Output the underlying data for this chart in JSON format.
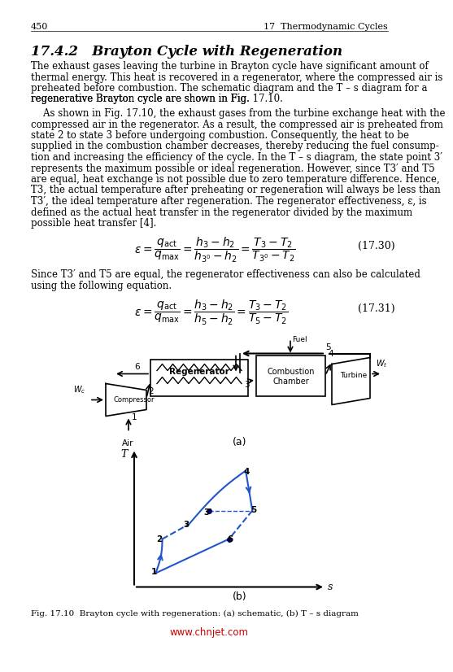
{
  "page_number": "450",
  "chapter_header": "17  Thermodynamic Cycles",
  "section_title": "17.4.2   Brayton Cycle with Regeneration",
  "para1": "The exhaust gases leaving the turbine in Brayton cycle have significant amount of thermal energy. This heat is recovered in a regenerator, where the compressed air is preheated before combustion. The schematic diagram and the T – s diagram for a regenerative Brayton cycle are shown in Fig. 17.10.",
  "para2": "As shown in Fig. 17.10, the exhaust gases from the turbine exchange heat with the compressed air in the regenerator. As a result, the compressed air is preheated from state 2 to state 3 before undergoing combustion. Consequently, the heat to be supplied in the combustion chamber decreases, thereby reducing the fuel consumption and increasing the efficiency of the cycle. In the T – s diagram, the state point 3′ represents the maximum possible or ideal regeneration. However, since T3′ and T5 are equal, heat exchange is not possible due to zero temperature difference. Hence, T3, the actual temperature after preheating or regeneration will always be less than T3′, the ideal temperature after regeneration. The regenerator effectiveness, ε, is defined as the actual heat transfer in the regenerator divided by the maximum possible heat transfer [4].",
  "eq1_label": "(17.30)",
  "eq2_text": "Since T3′ and T5 are equal, the regenerator effectiveness can also be calculated using the following equation.",
  "eq2_label": "(17.31)",
  "fig_caption": "Fig. 17.10  Brayton cycle with regeneration: (a) schematic, (b) T – s diagram",
  "website": "www.chnjet.com",
  "text_color": "#000000",
  "link_color": "#1a6ea8",
  "website_color": "#cc0000",
  "bg_color": "#ffffff"
}
